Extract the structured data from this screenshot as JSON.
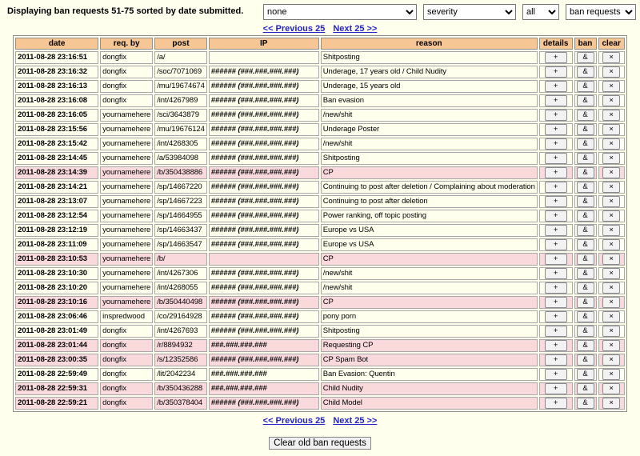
{
  "header": {
    "title": "Displaying ban requests 51-75 sorted by date submitted."
  },
  "filters": {
    "sort": "none",
    "severity": "severity",
    "scope": "all",
    "view": "ban requests"
  },
  "pagination": {
    "prev": "<< Previous 25",
    "next": "Next 25 >>"
  },
  "table": {
    "headers": [
      "date",
      "req. by",
      "post",
      "IP",
      "reason",
      "details",
      "ban",
      "clear"
    ],
    "row_buttons": {
      "details": "+",
      "ban": "&",
      "clear": "×"
    },
    "rows": [
      {
        "date": "2011-08-28 23:16:51",
        "req_by": "dongfix",
        "post": "/a/",
        "ip": "",
        "reason": "Shitposting",
        "flagged": false
      },
      {
        "date": "2011-08-28 23:16:32",
        "req_by": "dongfix",
        "post": "/soc/7071069",
        "ip": "###### (###.###.###.###)",
        "reason": "Underage, 17 years old / Child Nudity",
        "flagged": false
      },
      {
        "date": "2011-08-28 23:16:13",
        "req_by": "dongfix",
        "post": "/mu/19674674",
        "ip": "###### (###.###.###.###)",
        "reason": "Underage, 15 years old",
        "flagged": false
      },
      {
        "date": "2011-08-28 23:16:08",
        "req_by": "dongfix",
        "post": "/int/4267989",
        "ip": "###### (###.###.###.###)",
        "reason": "Ban evasion",
        "flagged": false
      },
      {
        "date": "2011-08-28 23:16:05",
        "req_by": "yournamehere",
        "post": "/sci/3643879",
        "ip": "###### (###.###.###.###)",
        "reason": "/new/shit",
        "flagged": false
      },
      {
        "date": "2011-08-28 23:15:56",
        "req_by": "yournamehere",
        "post": "/mu/19676124",
        "ip": "###### (###.###.###.###)",
        "reason": "Underage Poster",
        "flagged": false
      },
      {
        "date": "2011-08-28 23:15:42",
        "req_by": "yournamehere",
        "post": "/int/4268305",
        "ip": "###### (###.###.###.###)",
        "reason": "/new/shit",
        "flagged": false
      },
      {
        "date": "2011-08-28 23:14:45",
        "req_by": "yournamehere",
        "post": "/a/53984098",
        "ip": "###### (###.###.###.###)",
        "reason": "Shitposting",
        "flagged": false
      },
      {
        "date": "2011-08-28 23:14:39",
        "req_by": "yournamehere",
        "post": "/b/350438886",
        "ip": "###### (###.###.###.###)",
        "reason": "CP",
        "flagged": true
      },
      {
        "date": "2011-08-28 23:14:21",
        "req_by": "yournamehere",
        "post": "/sp/14667220",
        "ip": "###### (###.###.###.###)",
        "reason": "Continuing to post after deletion / Complaining about moderation",
        "flagged": false
      },
      {
        "date": "2011-08-28 23:13:07",
        "req_by": "yournamehere",
        "post": "/sp/14667223",
        "ip": "###### (###.###.###.###)",
        "reason": "Continuing to post after deletion",
        "flagged": false
      },
      {
        "date": "2011-08-28 23:12:54",
        "req_by": "yournamehere",
        "post": "/sp/14664955",
        "ip": "###### (###.###.###.###)",
        "reason": "Power ranking, off topic posting",
        "flagged": false
      },
      {
        "date": "2011-08-28 23:12:19",
        "req_by": "yournamehere",
        "post": "/sp/14663437",
        "ip": "###### (###.###.###.###)",
        "reason": "Europe vs USA",
        "flagged": false
      },
      {
        "date": "2011-08-28 23:11:09",
        "req_by": "yournamehere",
        "post": "/sp/14663547",
        "ip": "###### (###.###.###.###)",
        "reason": "Europe vs USA",
        "flagged": false
      },
      {
        "date": "2011-08-28 23:10:53",
        "req_by": "yournamehere",
        "post": "/b/",
        "ip": "",
        "reason": "CP",
        "flagged": true
      },
      {
        "date": "2011-08-28 23:10:30",
        "req_by": "yournamehere",
        "post": "/int/4267306",
        "ip": "###### (###.###.###.###)",
        "reason": "/new/shit",
        "flagged": false
      },
      {
        "date": "2011-08-28 23:10:20",
        "req_by": "yournamehere",
        "post": "/int/4268055",
        "ip": "###### (###.###.###.###)",
        "reason": "/new/shit",
        "flagged": false
      },
      {
        "date": "2011-08-28 23:10:16",
        "req_by": "yournamehere",
        "post": "/b/350440498",
        "ip": "###### (###.###.###.###)",
        "reason": "CP",
        "flagged": true
      },
      {
        "date": "2011-08-28 23:06:46",
        "req_by": "inspredwood",
        "post": "/co/29164928",
        "ip": "###### (###.###.###.###)",
        "reason": "pony porn",
        "flagged": false
      },
      {
        "date": "2011-08-28 23:01:49",
        "req_by": "dongfix",
        "post": "/int/4267693",
        "ip": "###### (###.###.###.###)",
        "reason": "Shitposting",
        "flagged": false
      },
      {
        "date": "2011-08-28 23:01:44",
        "req_by": "dongfix",
        "post": "/r/8894932",
        "ip": "###.###.###.###",
        "reason": "Requesting CP",
        "flagged": true
      },
      {
        "date": "2011-08-28 23:00:35",
        "req_by": "dongfix",
        "post": "/s/12352586",
        "ip": "###### (###.###.###.###)",
        "reason": "CP Spam Bot",
        "flagged": true
      },
      {
        "date": "2011-08-28 22:59:49",
        "req_by": "dongfix",
        "post": "/lit/2042234",
        "ip": "###.###.###.###",
        "reason": "Ban Evasion: Quentin",
        "flagged": false
      },
      {
        "date": "2011-08-28 22:59:31",
        "req_by": "dongfix",
        "post": "/b/350436288",
        "ip": "###.###.###.###",
        "reason": "Child Nudity",
        "flagged": true
      },
      {
        "date": "2011-08-28 22:59:21",
        "req_by": "dongfix",
        "post": "/b/350378404",
        "ip": "###### (###.###.###.###)",
        "reason": "Child Model",
        "flagged": true
      }
    ]
  },
  "footer": {
    "clear_button_label": "Clear old ban requests"
  },
  "colors": {
    "page_bg": "#ffffee",
    "header_bg": "#f6c695",
    "flagged_row_bg": "#f9d9dc",
    "row_bg": "#ffffee",
    "link": "#2222cc"
  }
}
